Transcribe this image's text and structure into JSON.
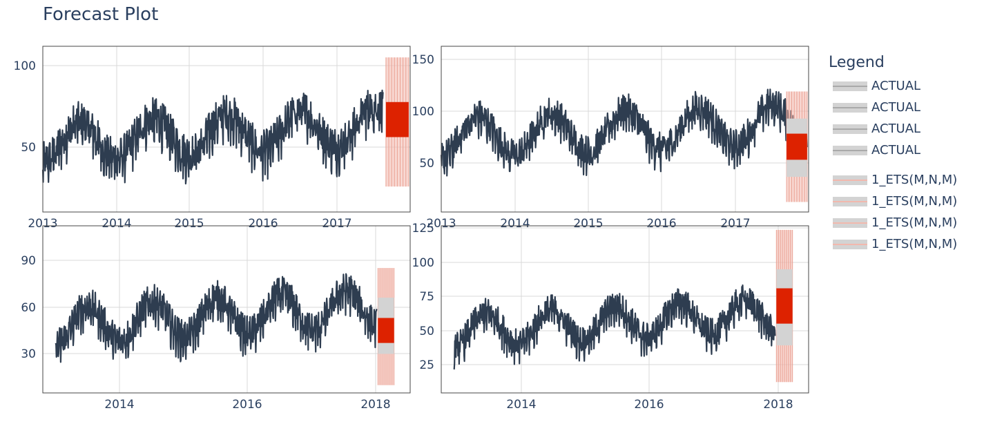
{
  "title": "Forecast Plot",
  "legend": {
    "title": "Legend",
    "actual_items": [
      "ACTUAL",
      "ACTUAL",
      "ACTUAL",
      "ACTUAL"
    ],
    "forecast_items": [
      "1_ETS(M,N,M)",
      "1_ETS(M,N,M)",
      "1_ETS(M,N,M)",
      "1_ETS(M,N,M)"
    ]
  },
  "colors": {
    "actual_line": "#2e3d50",
    "forecast_fill": "#dd2200",
    "interval_inner": "#d3d3d3",
    "interval_outer": "#f2b8ad",
    "grid": "#d9d9d9",
    "axis_text": "#2a3f5f"
  },
  "chart_data": [
    {
      "type": "line",
      "panel": "top-left",
      "x_tick_labels": [
        "2013",
        "2014",
        "2015",
        "2016",
        "2017"
      ],
      "y_tick_labels": [
        "50",
        "100"
      ],
      "xlim": [
        2013.0,
        2018.0
      ],
      "ylim": [
        8,
        112
      ],
      "actual": {
        "start": 2013.0,
        "end": 2017.63,
        "base": 48,
        "amp": 12,
        "noise": 14,
        "trend": 2.5
      },
      "forecast": {
        "x0": 2017.67,
        "x1": 2017.98,
        "red": [
          55,
          77
        ],
        "inner": [
          55,
          77
        ],
        "outer": [
          24,
          105
        ]
      }
    },
    {
      "type": "line",
      "panel": "top-right",
      "x_tick_labels": [
        "2013",
        "2014",
        "2015",
        "2016",
        "2017"
      ],
      "y_tick_labels": [
        "50",
        "100",
        "150"
      ],
      "xlim": [
        2013.0,
        2018.0
      ],
      "ylim": [
        0,
        165
      ],
      "actual": {
        "start": 2013.0,
        "end": 2017.98,
        "base": 70,
        "amp": 20,
        "noise": 18,
        "trend": 3
      },
      "forecast": {
        "x0": 2017.7,
        "x1": 2017.98,
        "red": [
          52,
          78
        ],
        "inner": [
          35,
          93
        ],
        "outer": [
          10,
          120
        ]
      }
    },
    {
      "type": "line",
      "panel": "bottom-left",
      "x_tick_labels": [
        "2014",
        "2016",
        "2018"
      ],
      "y_tick_labels": [
        "30",
        "60",
        "90"
      ],
      "xlim": [
        2012.8,
        2018.5
      ],
      "ylim": [
        5,
        112
      ],
      "actual": {
        "start": 2013.0,
        "end": 2017.98,
        "base": 45,
        "amp": 12,
        "noise": 12,
        "trend": 2.5
      },
      "forecast": {
        "x0": 2018.0,
        "x1": 2018.25,
        "red": [
          37,
          53
        ],
        "inner": [
          30,
          66
        ],
        "outer": [
          10,
          85
        ]
      }
    },
    {
      "type": "line",
      "panel": "bottom-right",
      "x_tick_labels": [
        "2014",
        "2016",
        "2018"
      ],
      "y_tick_labels": [
        "25",
        "50",
        "75",
        "100",
        "125"
      ],
      "xlim": [
        2012.8,
        2018.5
      ],
      "ylim": [
        2,
        125
      ],
      "actual": {
        "start": 2013.0,
        "end": 2017.98,
        "base": 45,
        "amp": 12,
        "noise": 12,
        "trend": 2.5
      },
      "forecast": {
        "x0": 2018.0,
        "x1": 2018.25,
        "red": [
          53,
          79
        ],
        "inner": [
          37,
          93
        ],
        "outer": [
          10,
          122
        ]
      }
    }
  ]
}
